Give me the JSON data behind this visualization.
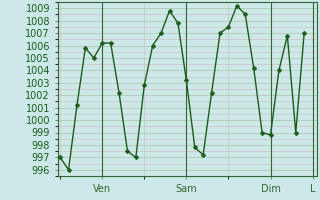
{
  "bg_color": "#cce8e8",
  "line_color": "#1a5c1a",
  "marker_color": "#1a5c1a",
  "grid_major_color": "#b0c8b0",
  "grid_minor_color": "#d4b8b8",
  "axis_color": "#336633",
  "tick_label_color": "#1a5c1a",
  "ylim": [
    995.5,
    1009.5
  ],
  "yticks": [
    996,
    997,
    998,
    999,
    1000,
    1001,
    1002,
    1003,
    1004,
    1005,
    1006,
    1007,
    1008,
    1009
  ],
  "x_values": [
    0,
    1,
    2,
    3,
    4,
    5,
    6,
    7,
    8,
    9,
    10,
    11,
    12,
    13,
    14,
    15,
    16,
    17,
    18,
    19,
    20,
    21,
    22,
    23,
    24,
    25,
    26,
    27,
    28,
    29
  ],
  "y_values": [
    997.0,
    996.0,
    1001.2,
    1005.8,
    1005.0,
    1006.2,
    1006.2,
    1002.2,
    997.5,
    997.0,
    1002.8,
    1006.0,
    1007.0,
    1008.8,
    1007.8,
    1003.2,
    997.8,
    997.2,
    1002.2,
    1007.0,
    1007.5,
    1009.2,
    1008.5,
    1004.2,
    999.0,
    998.8,
    1004.0,
    1006.8,
    999.0,
    1007.0
  ],
  "xlim": [
    -0.3,
    30.5
  ],
  "xtick_positions": [
    5,
    15,
    25,
    30
  ],
  "xtick_labels": [
    "Ven",
    "Sam",
    "Dim",
    "L"
  ],
  "vline_positions": [
    5,
    15,
    25,
    30
  ],
  "fontsize": 7,
  "marker_size": 2.5,
  "line_width": 1.0
}
